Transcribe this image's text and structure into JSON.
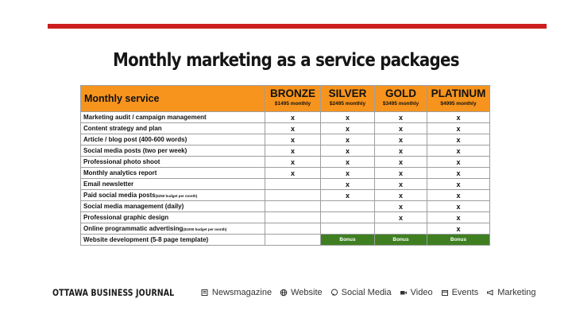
{
  "title": "Monthly marketing as a service packages",
  "table": {
    "service_header": "Monthly service",
    "tiers": [
      {
        "name": "BRONZE",
        "price": "$1495 monthly"
      },
      {
        "name": "SILVER",
        "price": "$2495 monthly"
      },
      {
        "name": "GOLD",
        "price": "$3495 monthly"
      },
      {
        "name": "PLATINUM",
        "price": "$4995 monthly"
      }
    ],
    "rows": [
      {
        "label": "Marketing audit / campaign management",
        "note": "",
        "cells": [
          "x",
          "x",
          "x",
          "x"
        ]
      },
      {
        "label": "Content strategy and plan",
        "note": "",
        "cells": [
          "x",
          "x",
          "x",
          "x"
        ]
      },
      {
        "label": "Article / blog post (400-600 words)",
        "note": "",
        "cells": [
          "x",
          "x",
          "x",
          "x"
        ]
      },
      {
        "label": "Social media posts (two per week)",
        "note": "",
        "cells": [
          "x",
          "x",
          "x",
          "x"
        ]
      },
      {
        "label": "Professional photo shoot",
        "note": "",
        "cells": [
          "x",
          "x",
          "x",
          "x"
        ]
      },
      {
        "label": "Monthly analytics report",
        "note": "",
        "cells": [
          "x",
          "x",
          "x",
          "x"
        ]
      },
      {
        "label": "Email newsletter",
        "note": "",
        "cells": [
          "",
          "x",
          "x",
          "x"
        ]
      },
      {
        "label": "Paid social media posts",
        "note": "($250 budget per month)",
        "cells": [
          "",
          "x",
          "x",
          "x"
        ]
      },
      {
        "label": "Social media management (daily)",
        "note": "",
        "cells": [
          "",
          "",
          "x",
          "x"
        ]
      },
      {
        "label": "Professional graphic design",
        "note": "",
        "cells": [
          "",
          "",
          "x",
          "x"
        ]
      },
      {
        "label": "Online programmatic advertising",
        "note": "($1000 budget per month)",
        "cells": [
          "",
          "",
          "",
          "x"
        ]
      },
      {
        "label": "Website development (5-8 page template)",
        "note": "",
        "cells": [
          "",
          "Bonus",
          "Bonus",
          "Bonus"
        ]
      }
    ]
  },
  "footer": {
    "brand": "OTTAWA BUSINESS JOURNAL",
    "links": [
      {
        "label": "Newsmagazine",
        "icon": "newspaper-icon"
      },
      {
        "label": "Website",
        "icon": "globe-icon"
      },
      {
        "label": "Social Media",
        "icon": "chat-icon"
      },
      {
        "label": "Video",
        "icon": "video-icon"
      },
      {
        "label": "Events",
        "icon": "calendar-icon"
      },
      {
        "label": "Marketing",
        "icon": "megaphone-icon"
      }
    ]
  },
  "colors": {
    "accent_bar": "#cc1e1e",
    "header_fill": "#f7941d",
    "bonus_fill": "#3f7f22"
  }
}
